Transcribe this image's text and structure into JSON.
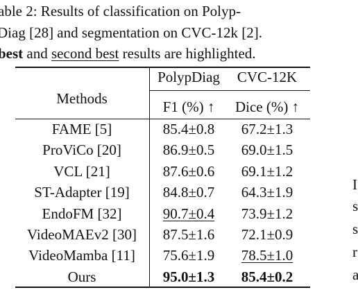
{
  "caption": {
    "lines": [
      [
        {
          "text": "able 2: Results of classification on Polyp-",
          "style": "plain"
        }
      ],
      [
        {
          "text": "Diag [28] and segmentation on CVC-12k [2].",
          "style": "plain"
        }
      ],
      [
        {
          "text": "best",
          "style": "bold"
        },
        {
          "text": " and ",
          "style": "plain"
        },
        {
          "text": "second best",
          "style": "underline"
        },
        {
          "text": " results are highlighted.",
          "style": "plain"
        }
      ]
    ]
  },
  "table": {
    "header": {
      "methods": "Methods",
      "groups": [
        "PolypDiag",
        "CVC-12K"
      ],
      "metrics": [
        "F1 (%) ↑",
        "Dice (%) ↑"
      ]
    },
    "rows": [
      [
        "FAME [5]",
        "85.4±0.8",
        "67.2±1.3"
      ],
      [
        "ProViCo [20]",
        "86.9±0.5",
        "69.0±1.5"
      ],
      [
        "VCL [21]",
        "87.6±0.6",
        "69.1±1.2"
      ],
      [
        "ST-Adapter [19]",
        "84.8±0.7",
        "64.3±1.9"
      ],
      [
        "EndoFM [32]",
        "90.7±0.4",
        "73.9±1.2"
      ],
      [
        "VideoMAEv2 [30]",
        "87.5±1.6",
        "72.1±0.9"
      ],
      [
        "VideoMamba [11]",
        "75.6±1.9",
        "78.5±1.0"
      ],
      [
        "Ours",
        "95.0±1.3",
        "85.4±0.2"
      ]
    ],
    "emphasis": [
      [
        "none",
        "none",
        "none"
      ],
      [
        "none",
        "none",
        "none"
      ],
      [
        "none",
        "none",
        "none"
      ],
      [
        "none",
        "none",
        "none"
      ],
      [
        "none",
        "underline",
        "none"
      ],
      [
        "none",
        "none",
        "none"
      ],
      [
        "none",
        "none",
        "underline"
      ],
      [
        "none",
        "bold",
        "bold"
      ]
    ]
  },
  "right_fragments": [
    "I",
    "s",
    "s",
    "r",
    "a"
  ]
}
